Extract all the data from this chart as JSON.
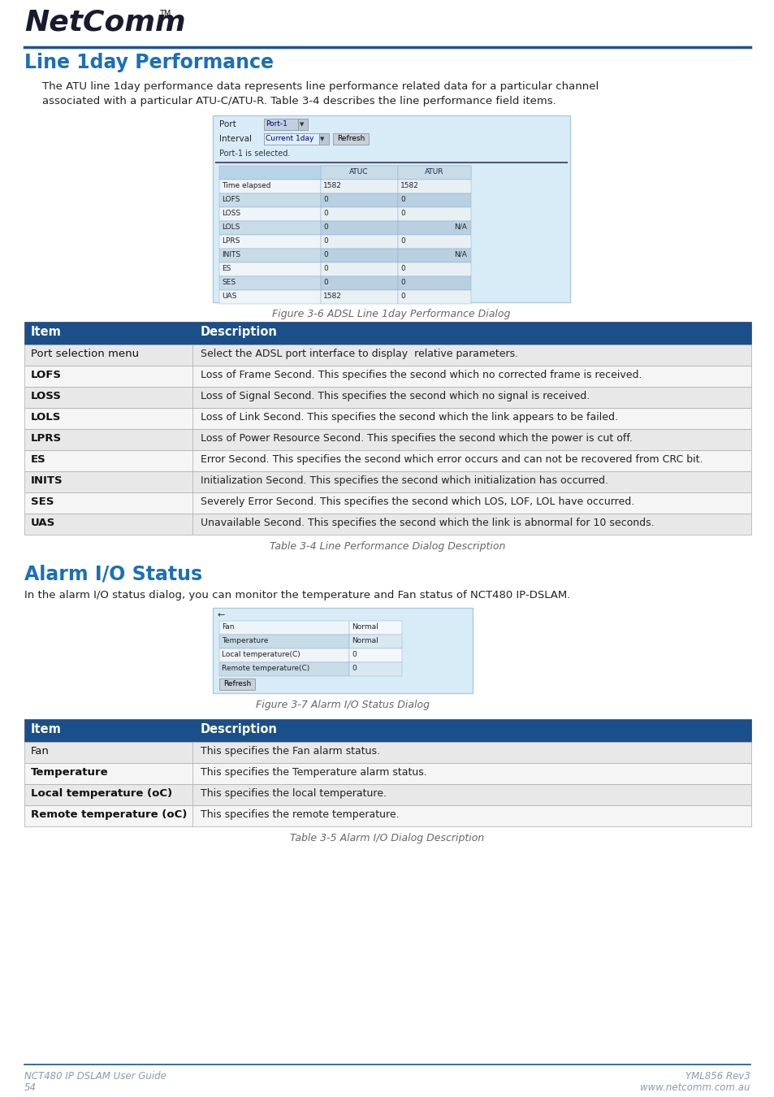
{
  "page_bg": "#ffffff",
  "header_line_color": "#1a5296",
  "section1_title": "Line 1day Performance",
  "section1_title_color": "#1a6fba",
  "section1_body_line1": "The ATU line 1day performance data represents line performance related data for a particular channel",
  "section1_body_line2": "associated with a particular ATU-C/ATU-R. Table 3-4 describes the line performance field items.",
  "fig1_caption": "Figure 3-6 ADSL Line 1day Performance Dialog",
  "table1_header_bg": "#1a4f8a",
  "table1_header_fg": "#ffffff",
  "table1_rows": [
    [
      "Port selection menu",
      "Select the ADSL port interface to display  relative parameters."
    ],
    [
      "LOFS",
      "Loss of Frame Second. This specifies the second which no corrected frame is received."
    ],
    [
      "LOSS",
      "Loss of Signal Second. This specifies the second which no signal is received."
    ],
    [
      "LOLS",
      "Loss of Link Second. This specifies the second which the link appears to be failed."
    ],
    [
      "LPRS",
      "Loss of Power Resource Second. This specifies the second which the power is cut off."
    ],
    [
      "ES",
      "Error Second. This specifies the second which error occurs and can not be recovered from CRC bit."
    ],
    [
      "INITS",
      "Initialization Second. This specifies the second which initialization has occurred."
    ],
    [
      "SES",
      "Severely Error Second. This specifies the second which LOS, LOF, LOL have occurred."
    ],
    [
      "UAS",
      "Unavailable Second. This specifies the second which the link is abnormal for 10 seconds."
    ]
  ],
  "table1_caption": "Table 3-4 Line Performance Dialog Description",
  "section2_title": "Alarm I/O Status",
  "section2_title_color": "#1a6fba",
  "section2_body": "In the alarm I/O status dialog, you can monitor the temperature and Fan status of NCT480 IP-DSLAM.",
  "fig2_caption": "Figure 3-7 Alarm I/O Status Dialog",
  "table2_header_bg": "#1a4f8a",
  "table2_header_fg": "#ffffff",
  "table2_rows": [
    [
      "Fan",
      "This specifies the Fan alarm status."
    ],
    [
      "Temperature",
      "This specifies the Temperature alarm status."
    ],
    [
      "Local temperature (oC)",
      "This specifies the local temperature."
    ],
    [
      "Remote temperature (oC)",
      "This specifies the remote temperature."
    ]
  ],
  "table2_caption": "Table 3-5 Alarm I/O Dialog Description",
  "footer_left1": "NCT480 IP DSLAM User Guide",
  "footer_left2": "54",
  "footer_right1": "YML856 Rev3",
  "footer_right2": "www.netcomm.com.au",
  "footer_line_color": "#1a5296",
  "footer_text_color": "#8a9bb0"
}
